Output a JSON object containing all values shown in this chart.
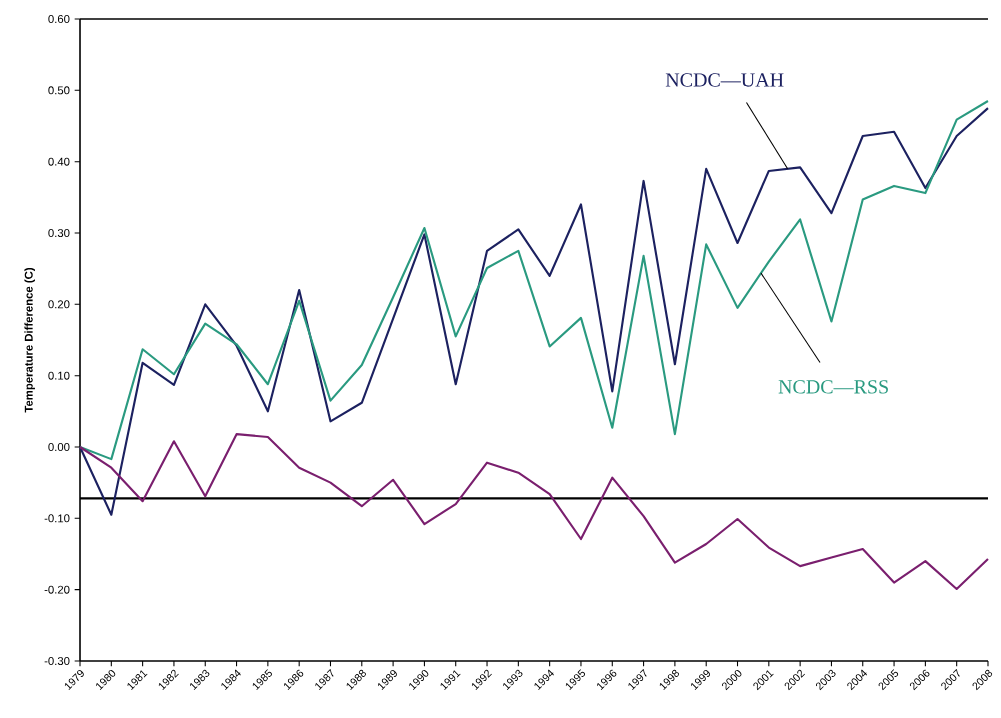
{
  "chart_data": {
    "type": "line",
    "categories": [
      "1979",
      "1980",
      "1981",
      "1982",
      "1983",
      "1984",
      "1985",
      "1986",
      "1987",
      "1988",
      "1989",
      "1990",
      "1991",
      "1992",
      "1993",
      "1994",
      "1995",
      "1996",
      "1997",
      "1998",
      "1999",
      "2000",
      "2001",
      "2002",
      "2003",
      "2004",
      "2005",
      "2006",
      "2007",
      "2008"
    ],
    "series": [
      {
        "name": "NCDC—UAH",
        "color": "#1c2160",
        "values": [
          0.0,
          -0.095,
          0.118,
          0.087,
          0.2,
          0.142,
          0.05,
          0.22,
          0.036,
          0.062,
          0.18,
          0.298,
          0.088,
          0.275,
          0.305,
          0.24,
          0.34,
          0.078,
          0.373,
          0.116,
          0.39,
          0.286,
          0.387,
          0.392,
          0.328,
          0.436,
          0.442,
          0.363,
          0.436,
          0.475
        ]
      },
      {
        "name": "NCDC—RSS",
        "color": "#2a9a80",
        "values": [
          0.0,
          -0.017,
          0.137,
          0.102,
          0.173,
          0.144,
          0.088,
          0.205,
          0.065,
          0.115,
          0.21,
          0.307,
          0.155,
          0.251,
          0.275,
          0.141,
          0.181,
          0.027,
          0.268,
          0.018,
          0.284,
          0.195,
          0.26,
          0.319,
          0.176,
          0.347,
          0.366,
          0.356,
          0.459,
          0.485
        ]
      },
      {
        "color": "#7a1f6e",
        "values": [
          0.0,
          -0.029,
          -0.076,
          0.008,
          -0.069,
          0.018,
          0.014,
          -0.029,
          -0.05,
          -0.083,
          -0.046,
          -0.108,
          -0.08,
          -0.022,
          -0.036,
          -0.066,
          -0.129,
          -0.043,
          -0.097,
          -0.162,
          -0.136,
          -0.101,
          -0.141,
          -0.167,
          -0.155,
          -0.143,
          -0.19,
          -0.16,
          -0.199,
          -0.157
        ]
      }
    ],
    "ylabel": "Temperature Difference (C)",
    "ylim": [
      -0.3,
      0.6
    ],
    "yticks": [
      {
        "value": -0.3,
        "label": "-0.30"
      },
      {
        "value": -0.2,
        "label": "-0.20"
      },
      {
        "value": -0.1,
        "label": "-0.10"
      },
      {
        "value": 0,
        "label": "0.00"
      },
      {
        "value": 0.1,
        "label": "0.10"
      },
      {
        "value": 0.2,
        "label": "0.20"
      },
      {
        "value": 0.3,
        "label": "0.30"
      },
      {
        "value": 0.4,
        "label": "0.40"
      },
      {
        "value": 0.5,
        "label": "0.50"
      },
      {
        "value": 0.6,
        "label": "0.60"
      }
    ],
    "ref_lines": [
      {
        "axis": "y",
        "value": -0.072,
        "color": "#000000"
      }
    ],
    "marker": "none",
    "line_style": "solid",
    "grid": false,
    "legend": false
  }
}
